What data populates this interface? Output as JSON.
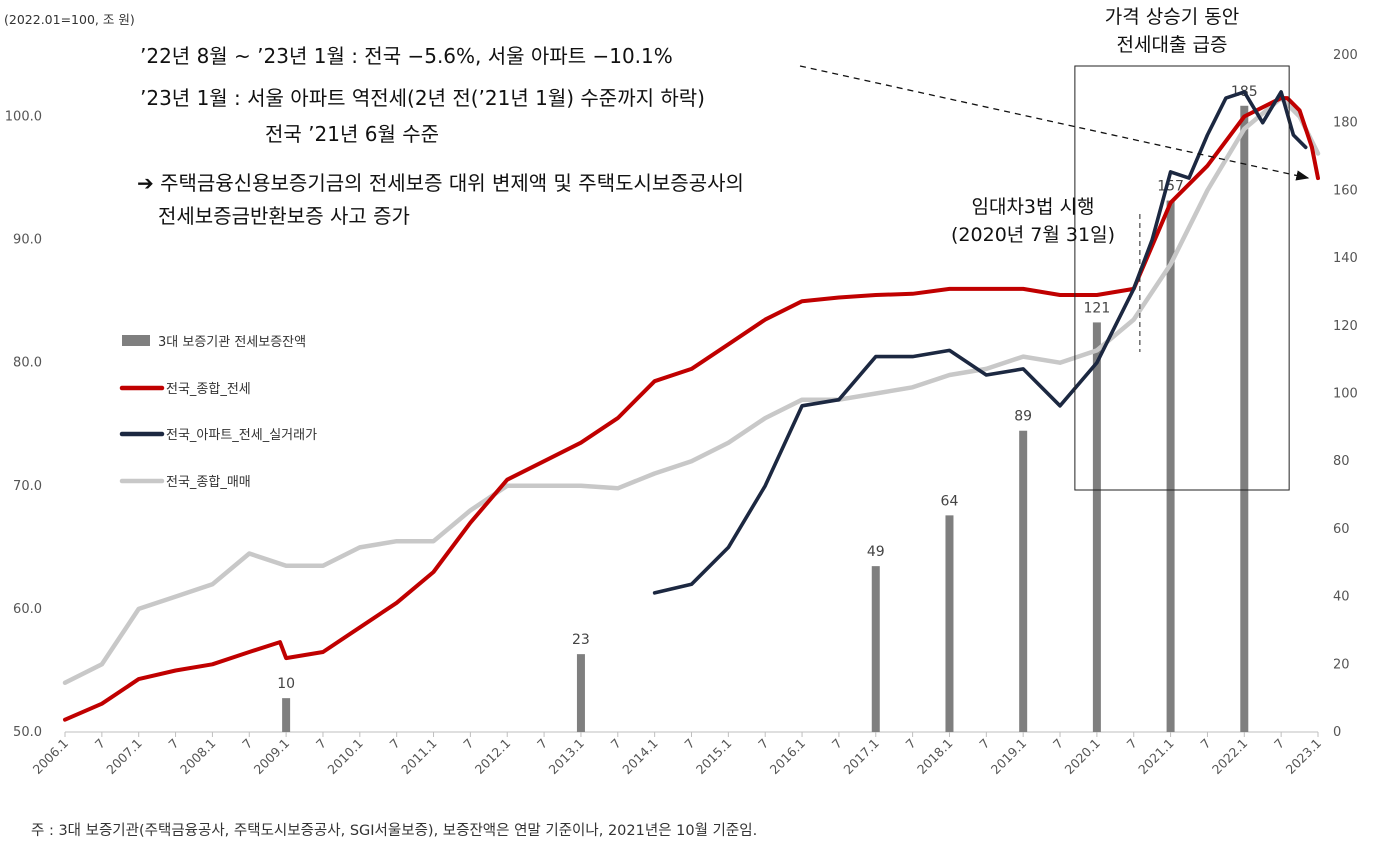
{
  "unit_label": "(2022.01=100, 조 원)",
  "annotations": {
    "line1": "’22년 8월 ~ ’23년 1월 : 전국 −5.6%, 서울 아파트 −10.1%",
    "line2": "’23년 1월 : 서울 아파트 역전세(2년 전(’21년 1월) 수준까지 하락)",
    "line3": "전국 ’21년 6월 수준",
    "arrow_glyph": "➔",
    "line4": "주택금융신용보증기금의 전세보증 대위 변제액 및 주택도시보증공사의",
    "line5": "전세보증금반환보증 사고 증가",
    "surge_title_1": "가격 상승기 동안",
    "surge_title_2": "전세대출 급증",
    "law_1": "임대차3법 시행",
    "law_2": "(2020년 7월 31일)"
  },
  "footnote": "주 : 3대 보증기관(주택금융공사, 주택도시보증공사, SGI서울보증), 보증잔액은 연말 기준이나, 2021년은 10월 기준임.",
  "colors": {
    "bar": "#7f7f7f",
    "total_jeonse": "#c00000",
    "apt_jeonse": "#1c2841",
    "total_sale": "#c8c8c8"
  },
  "chart_data": {
    "type": "bar+line",
    "x_ticks": [
      "2006.1",
      "7",
      "2007.1",
      "7",
      "2008.1",
      "7",
      "2009.1",
      "7",
      "2010.1",
      "7",
      "2011.1",
      "7",
      "2012.1",
      "7",
      "2013.1",
      "7",
      "2014.1",
      "7",
      "2015.1",
      "7",
      "2016.1",
      "7",
      "2017.1",
      "7",
      "2018.1",
      "7",
      "2019.1",
      "7",
      "2020.1",
      "7",
      "2021.1",
      "7",
      "2022.1",
      "7",
      "2023.1"
    ],
    "left_axis": {
      "range": [
        50,
        105
      ],
      "ticks": [
        "50.0",
        "60.0",
        "70.0",
        "80.0",
        "90.0",
        "100.0"
      ]
    },
    "right_axis": {
      "range": [
        0,
        200
      ],
      "ticks": [
        "0",
        "20",
        "40",
        "60",
        "80",
        "100",
        "120",
        "140",
        "160",
        "180",
        "200"
      ]
    },
    "bars": {
      "name": "3대 보증기관 전세보증잔액",
      "axis": "right",
      "x": [
        "2009.1",
        "2013.1",
        "2017.1",
        "2018.1",
        "2019.1",
        "2020.1",
        "2021.1",
        "2022.1"
      ],
      "values": [
        10,
        23,
        49,
        64,
        89,
        121,
        157,
        185
      ],
      "labels": [
        "10",
        "23",
        "49",
        "64",
        "89",
        "121",
        "157",
        "185"
      ]
    },
    "series": [
      {
        "name": "전국_종합_전세",
        "axis": "left",
        "color": "#c00000",
        "x": [
          "2006.1",
          "2006.7",
          "2007.1",
          "2007.7",
          "2008.1",
          "2008.7",
          "2008.12",
          "2009.1",
          "2009.7",
          "2010.1",
          "2010.7",
          "2011.1",
          "2011.7",
          "2012.1",
          "2012.7",
          "2013.1",
          "2013.7",
          "2014.1",
          "2014.7",
          "2015.1",
          "2015.7",
          "2016.1",
          "2016.7",
          "2017.1",
          "2017.7",
          "2018.1",
          "2018.7",
          "2019.1",
          "2019.7",
          "2020.1",
          "2020.7",
          "2021.1",
          "2021.7",
          "2022.1",
          "2022.7",
          "2022.8",
          "2022.10",
          "2022.12",
          "2023.1"
        ],
        "values": [
          51.0,
          52.3,
          54.3,
          55.0,
          55.5,
          56.5,
          57.3,
          56.0,
          56.5,
          58.5,
          60.5,
          63.0,
          67.0,
          70.5,
          72.0,
          73.5,
          75.5,
          78.5,
          79.5,
          81.5,
          83.5,
          85.0,
          85.3,
          85.5,
          85.6,
          86.0,
          86.0,
          86.0,
          85.5,
          85.5,
          86.0,
          93.0,
          96.0,
          100.0,
          101.5,
          101.5,
          100.5,
          97.5,
          95.0
        ]
      },
      {
        "name": "전국_아파트_전세_실거래가",
        "axis": "left",
        "color": "#1c2841",
        "x": [
          "2014.1",
          "2014.7",
          "2015.1",
          "2015.7",
          "2016.1",
          "2016.7",
          "2017.1",
          "2017.7",
          "2018.1",
          "2018.7",
          "2019.1",
          "2019.7",
          "2020.1",
          "2020.7",
          "2020.10",
          "2021.1",
          "2021.4",
          "2021.7",
          "2021.10",
          "2022.1",
          "2022.4",
          "2022.7",
          "2022.9",
          "2022.11"
        ],
        "values": [
          61.3,
          62.0,
          65.0,
          70.0,
          76.5,
          77.0,
          80.5,
          80.5,
          81.0,
          79.0,
          79.5,
          76.5,
          80.0,
          86.0,
          90.0,
          95.5,
          95.0,
          98.5,
          101.5,
          102.0,
          99.5,
          102.0,
          98.5,
          97.5
        ]
      },
      {
        "name": "전국_종합_매매",
        "axis": "left",
        "color": "#c8c8c8",
        "x": [
          "2006.1",
          "2006.7",
          "2007.1",
          "2007.7",
          "2008.1",
          "2008.7",
          "2009.1",
          "2009.7",
          "2010.1",
          "2010.7",
          "2011.1",
          "2011.7",
          "2012.1",
          "2012.7",
          "2013.1",
          "2013.7",
          "2014.1",
          "2014.7",
          "2015.1",
          "2015.7",
          "2016.1",
          "2016.7",
          "2017.1",
          "2017.7",
          "2018.1",
          "2018.7",
          "2019.1",
          "2019.7",
          "2020.1",
          "2020.7",
          "2021.1",
          "2021.7",
          "2022.1",
          "2022.7",
          "2022.10",
          "2023.1"
        ],
        "values": [
          54.0,
          55.5,
          60.0,
          61.0,
          62.0,
          64.5,
          63.5,
          63.5,
          65.0,
          65.5,
          65.5,
          68.0,
          70.0,
          70.0,
          70.0,
          69.8,
          71.0,
          72.0,
          73.5,
          75.5,
          77.0,
          77.0,
          77.5,
          78.0,
          79.0,
          79.5,
          80.5,
          80.0,
          81.0,
          83.5,
          88.0,
          94.0,
          99.0,
          101.5,
          100.0,
          97.0
        ]
      }
    ]
  },
  "legend": [
    {
      "name": "3대 보증기관 전세보증잔액",
      "color": "#7f7f7f",
      "type": "bar"
    },
    {
      "name": "전국_종합_전세",
      "color": "#c00000",
      "type": "line"
    },
    {
      "name": "전국_아파트_전세_실거래가",
      "color": "#1c2841",
      "type": "line"
    },
    {
      "name": "전국_종합_매매",
      "color": "#c8c8c8",
      "type": "line"
    }
  ]
}
